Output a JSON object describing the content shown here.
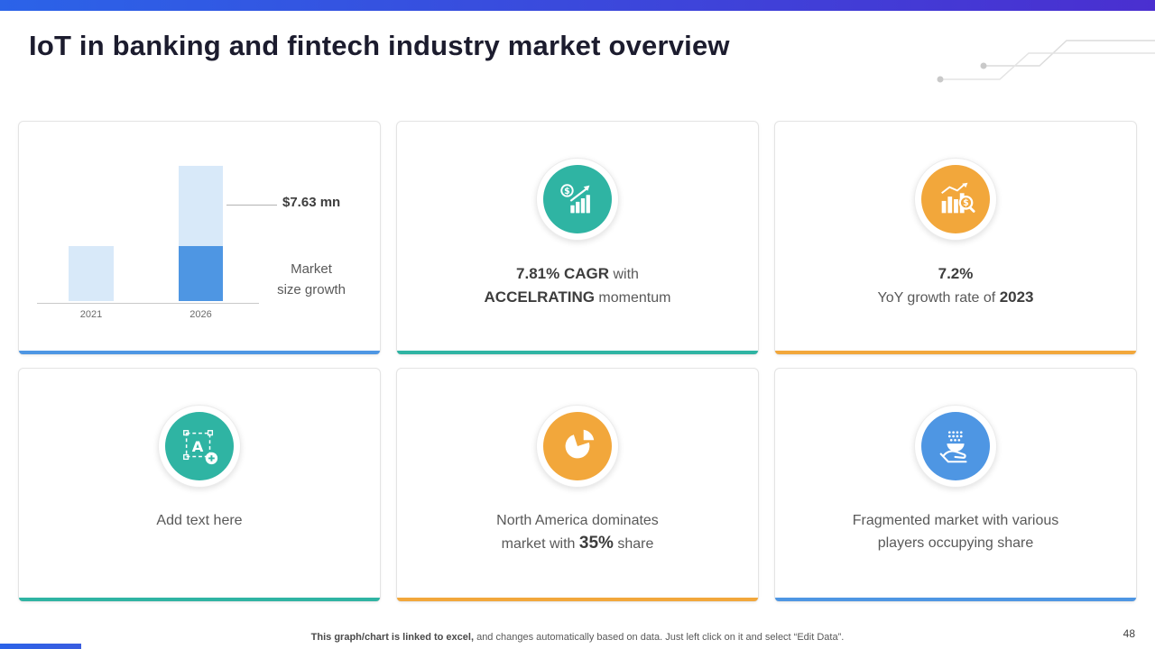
{
  "slide": {
    "title": "IoT in banking and fintech industry market overview",
    "page_number": "48",
    "footer_bold": "This graph/chart is linked to excel,",
    "footer_rest": " and changes automatically based on data. Just left click on it and select “Edit Data”."
  },
  "colors": {
    "top_bar_gradient_start": "#2B63E8",
    "top_bar_gradient_end": "#4A2FD0",
    "accent_blue": "#4E96E3",
    "accent_teal": "#2FB4A3",
    "accent_orange": "#F2A73B",
    "bar_light_blue": "#D8E9F9",
    "bar_dark_blue": "#4E96E3"
  },
  "cards": {
    "market_size": {
      "annotation": "$7.63 mn",
      "caption_line_1": "Market",
      "caption_line_2": "size growth"
    },
    "cagr": {
      "bold_1": "7.81% CAGR",
      "rest_1": " with",
      "bold_2": "ACCELRATING",
      "rest_2": " momentum",
      "icon": "dollar-growth-chart-icon"
    },
    "yoy": {
      "bold_1": "7.2%",
      "rest_1": "YoY growth rate of ",
      "bold_2": "2023",
      "icon": "chart-magnifier-dollar-icon"
    },
    "add_text": {
      "label": "Add text here",
      "icon": "add-text-icon"
    },
    "north_america": {
      "line_1": "North America dominates",
      "rest_1": "market with ",
      "bold_1": "35%",
      "rest_2": " share",
      "icon": "pie-chart-icon"
    },
    "fragmented": {
      "line_1": "Fragmented market with various",
      "line_2": "players occupying share",
      "icon": "hand-sharing-icon"
    }
  },
  "chart_data": {
    "type": "bar",
    "title": "Market size growth",
    "categories": [
      "2021",
      "2026"
    ],
    "values": [
      3.1,
      7.63
    ],
    "unit": "$ mn",
    "ylim": [
      0,
      7.63
    ],
    "grid": false,
    "legend": false,
    "annotation": {
      "category": "2026",
      "text": "$7.63 mn",
      "value": 7.63
    },
    "stack_2026": {
      "dark_blue_bottom": 3.1,
      "light_blue_top": 4.53
    },
    "bar_colors": {
      "2021": "#D8E9F9",
      "2026_bottom": "#4E96E3",
      "2026_top": "#D8E9F9"
    }
  }
}
